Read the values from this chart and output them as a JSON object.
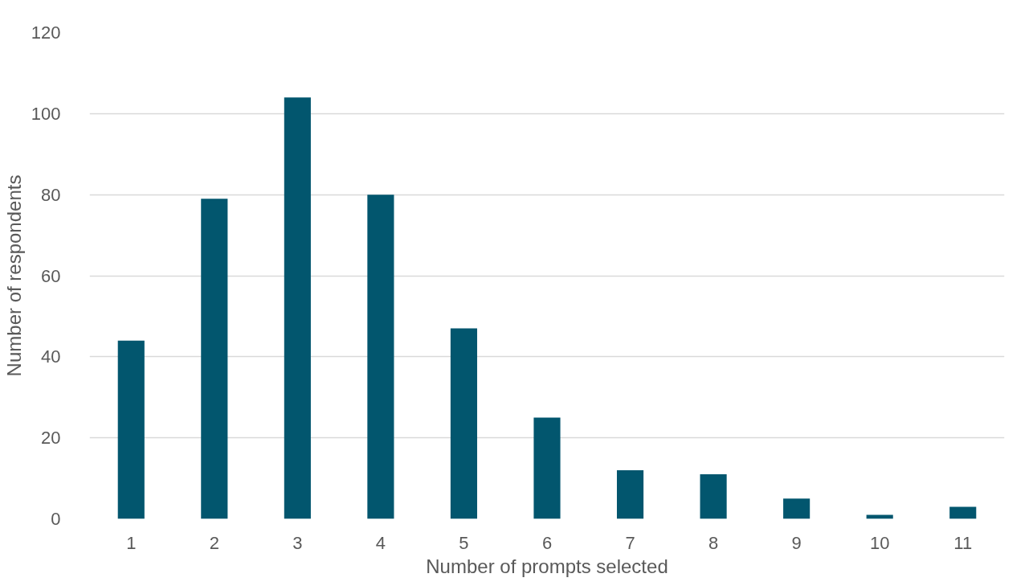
{
  "chart_data": {
    "type": "bar",
    "xlabel": "Number of prompts selected",
    "ylabel": "Number of respondents",
    "categories": [
      "1",
      "2",
      "3",
      "4",
      "5",
      "6",
      "7",
      "8",
      "9",
      "10",
      "11"
    ],
    "values": [
      44,
      79,
      104,
      80,
      47,
      25,
      12,
      11,
      5,
      1,
      3
    ],
    "color": "#02566e",
    "ylim": [
      0,
      120
    ],
    "yticks": [
      0,
      20,
      40,
      60,
      80,
      100,
      120
    ],
    "grid": "y"
  }
}
